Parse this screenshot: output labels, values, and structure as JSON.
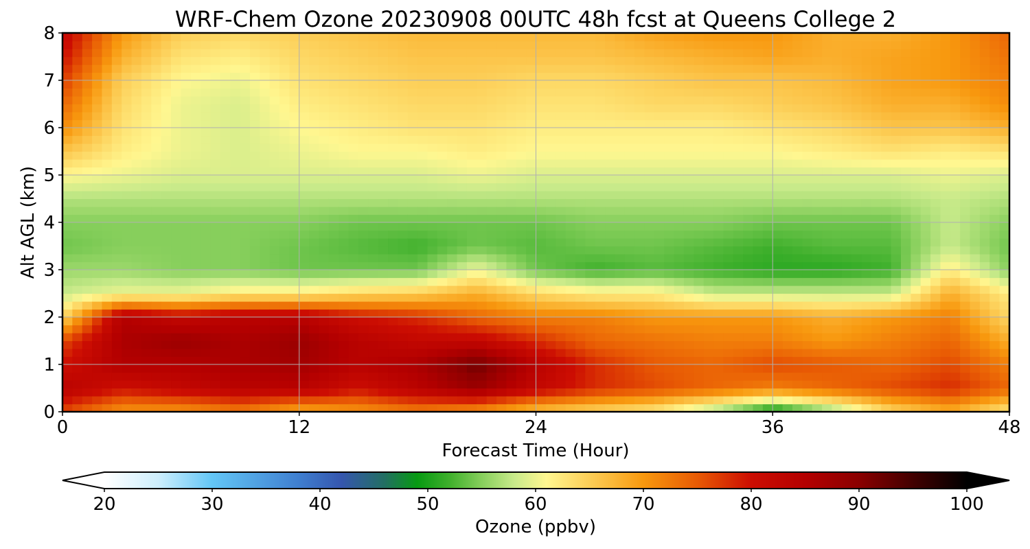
{
  "chart_data": {
    "type": "heatmap",
    "title": "WRF-Chem Ozone  20230908 00UTC 48h fcst at Queens College 2",
    "xlabel": "Forecast Time (Hour)",
    "ylabel": "Alt AGL (km)",
    "xlim": [
      0,
      48
    ],
    "ylim": [
      0,
      8
    ],
    "xticks": [
      0,
      12,
      24,
      36,
      48
    ],
    "yticks": [
      0,
      1,
      2,
      3,
      4,
      5,
      6,
      7,
      8
    ],
    "grid": true,
    "x": [
      0,
      3,
      6,
      9,
      12,
      15,
      18,
      21,
      24,
      27,
      30,
      33,
      36,
      39,
      42,
      45,
      48
    ],
    "y": [
      0,
      0.5,
      1,
      1.5,
      2,
      2.5,
      3,
      3.5,
      4,
      4.5,
      5,
      5.5,
      6,
      6.5,
      7,
      7.5,
      8
    ],
    "z_rows": [
      [
        76,
        70,
        70,
        72,
        68,
        70,
        72,
        70,
        66,
        64,
        62,
        56,
        48,
        55,
        64,
        68,
        62
      ],
      [
        84,
        80,
        82,
        84,
        84,
        80,
        84,
        88,
        82,
        78,
        76,
        74,
        72,
        74,
        76,
        78,
        74
      ],
      [
        80,
        85,
        85,
        86,
        87,
        84,
        86,
        92,
        84,
        78,
        75,
        74,
        76,
        75,
        74,
        76,
        72
      ],
      [
        76,
        86,
        88,
        86,
        88,
        84,
        82,
        82,
        78,
        74,
        73,
        72,
        72,
        70,
        72,
        74,
        68
      ],
      [
        64,
        85,
        82,
        84,
        84,
        80,
        78,
        74,
        72,
        72,
        70,
        70,
        70,
        68,
        70,
        72,
        64
      ],
      [
        58,
        60,
        60,
        62,
        62,
        64,
        65,
        68,
        64,
        62,
        62,
        58,
        58,
        58,
        58,
        68,
        62
      ],
      [
        56,
        56,
        55,
        55,
        54,
        54,
        54,
        60,
        54,
        52,
        53,
        52,
        51,
        51,
        52,
        62,
        55
      ],
      [
        54,
        55,
        55,
        55,
        54,
        53,
        52,
        54,
        53,
        54,
        54,
        53,
        52,
        53,
        53,
        58,
        54
      ],
      [
        55,
        55,
        55,
        55,
        55,
        54,
        54,
        54,
        54,
        55,
        55,
        55,
        54,
        54,
        54,
        58,
        55
      ],
      [
        57,
        57,
        57,
        57,
        57,
        57,
        57,
        57,
        57,
        57,
        57,
        57,
        57,
        57,
        57,
        58,
        57
      ],
      [
        61,
        60,
        59,
        59,
        59,
        59,
        59,
        60,
        59,
        59,
        59,
        59,
        59,
        59,
        59,
        60,
        59
      ],
      [
        66,
        62,
        60,
        59,
        60,
        61,
        61,
        62,
        61,
        61,
        61,
        61,
        61,
        62,
        63,
        62,
        63
      ],
      [
        71,
        63,
        60,
        59,
        61,
        62,
        63,
        63,
        62,
        62,
        62,
        62,
        63,
        64,
        66,
        66,
        68
      ],
      [
        74,
        64,
        60,
        59,
        62,
        63,
        64,
        64,
        63,
        63,
        64,
        64,
        65,
        66,
        68,
        68,
        71
      ],
      [
        77,
        65,
        61,
        60,
        63,
        64,
        65,
        65,
        64,
        64,
        65,
        66,
        66,
        67,
        69,
        70,
        72
      ],
      [
        80,
        68,
        63,
        62,
        64,
        65,
        66,
        66,
        66,
        66,
        67,
        68,
        69,
        68,
        69,
        70,
        73
      ],
      [
        82,
        70,
        65,
        64,
        65,
        66,
        67,
        67,
        67,
        67,
        69,
        70,
        70,
        68,
        68,
        70,
        74
      ]
    ],
    "colorbar": {
      "label": "Ozone  (ppbv)",
      "min": 20,
      "max": 100,
      "ticks": [
        20,
        30,
        40,
        50,
        60,
        70,
        80,
        90,
        100
      ],
      "extend": "both",
      "colors": [
        {
          "v": 20,
          "c": "#ffffff"
        },
        {
          "v": 25,
          "c": "#cdeefc"
        },
        {
          "v": 30,
          "c": "#63c6f6"
        },
        {
          "v": 38,
          "c": "#3f7fd0"
        },
        {
          "v": 42,
          "c": "#3556ae"
        },
        {
          "v": 46,
          "c": "#226f62"
        },
        {
          "v": 49,
          "c": "#079a12"
        },
        {
          "v": 52,
          "c": "#3fb02c"
        },
        {
          "v": 55,
          "c": "#87cf5c"
        },
        {
          "v": 58,
          "c": "#c8ea8a"
        },
        {
          "v": 61,
          "c": "#fff790"
        },
        {
          "v": 64,
          "c": "#fdd865"
        },
        {
          "v": 67,
          "c": "#fbba3b"
        },
        {
          "v": 70,
          "c": "#f8980e"
        },
        {
          "v": 75,
          "c": "#e85a04"
        },
        {
          "v": 80,
          "c": "#cc0d02"
        },
        {
          "v": 85,
          "c": "#b40000"
        },
        {
          "v": 90,
          "c": "#8a0000"
        },
        {
          "v": 95,
          "c": "#420000"
        },
        {
          "v": 100,
          "c": "#000000"
        }
      ]
    }
  }
}
